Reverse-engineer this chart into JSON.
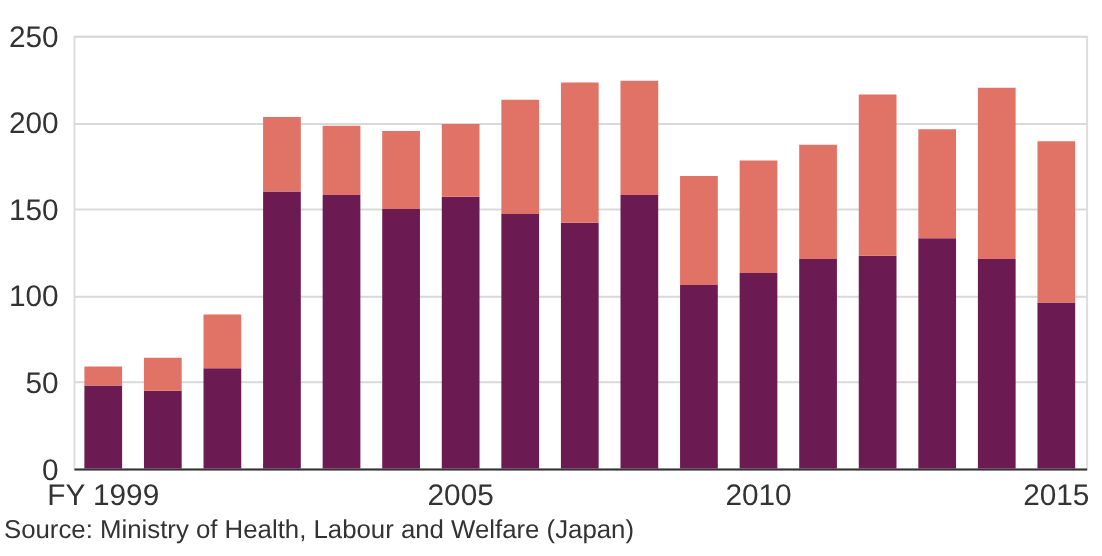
{
  "chart_data": {
    "type": "bar",
    "stacked": true,
    "categories": [
      "FY 1999",
      null,
      null,
      null,
      null,
      null,
      "2005",
      null,
      null,
      null,
      null,
      "2010",
      null,
      null,
      null,
      null,
      "2015"
    ],
    "series": [
      {
        "color": "#6b1a52",
        "values": [
          48,
          45,
          58,
          160,
          158,
          150,
          157,
          147,
          142,
          158,
          106,
          113,
          121,
          123,
          133,
          121,
          96
        ]
      },
      {
        "color": "#e07365",
        "values": [
          11,
          19,
          31,
          43,
          40,
          45,
          42,
          66,
          81,
          66,
          63,
          65,
          66,
          93,
          63,
          99,
          93
        ]
      }
    ],
    "ylim": [
      0,
      250
    ],
    "yticks": [
      0,
      50,
      100,
      150,
      200,
      250
    ],
    "grid": "y",
    "legend": false,
    "annotations": [
      "Source: Ministry of Health, Labour and Welfare (Japan)"
    ]
  }
}
